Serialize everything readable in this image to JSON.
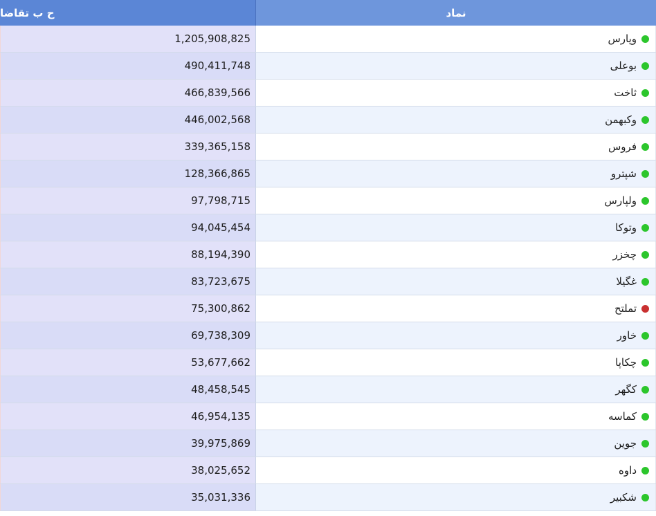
{
  "table": {
    "headers": {
      "bid_volume": "ح ب تقاضا",
      "symbol": "نماد"
    },
    "status_colors": {
      "positive": "#2cc62c",
      "negative": "#c93030"
    },
    "rows": [
      {
        "symbol": "وپارس",
        "bid_volume": "1,205,908,825",
        "status": "positive"
      },
      {
        "symbol": "بوعلی",
        "bid_volume": "490,411,748",
        "status": "positive"
      },
      {
        "symbol": "ثاخت",
        "bid_volume": "466,839,566",
        "status": "positive"
      },
      {
        "symbol": "وکبهمن",
        "bid_volume": "446,002,568",
        "status": "positive"
      },
      {
        "symbol": "فروس",
        "bid_volume": "339,365,158",
        "status": "positive"
      },
      {
        "symbol": "شپترو",
        "bid_volume": "128,366,865",
        "status": "positive"
      },
      {
        "symbol": "ولپارس",
        "bid_volume": "97,798,715",
        "status": "positive"
      },
      {
        "symbol": "وتوکا",
        "bid_volume": "94,045,454",
        "status": "positive"
      },
      {
        "symbol": "چخزر",
        "bid_volume": "88,194,390",
        "status": "positive"
      },
      {
        "symbol": "غگیلا",
        "bid_volume": "83,723,675",
        "status": "positive"
      },
      {
        "symbol": "تملتح",
        "bid_volume": "75,300,862",
        "status": "negative"
      },
      {
        "symbol": "خاور",
        "bid_volume": "69,738,309",
        "status": "positive"
      },
      {
        "symbol": "چکاپا",
        "bid_volume": "53,677,662",
        "status": "positive"
      },
      {
        "symbol": "کگهر",
        "bid_volume": "48,458,545",
        "status": "positive"
      },
      {
        "symbol": "کماسه",
        "bid_volume": "46,954,135",
        "status": "positive"
      },
      {
        "symbol": "جوین",
        "bid_volume": "39,975,869",
        "status": "positive"
      },
      {
        "symbol": "داوه",
        "bid_volume": "38,025,652",
        "status": "positive"
      },
      {
        "symbol": "شکبیر",
        "bid_volume": "35,031,336",
        "status": "positive"
      }
    ]
  }
}
